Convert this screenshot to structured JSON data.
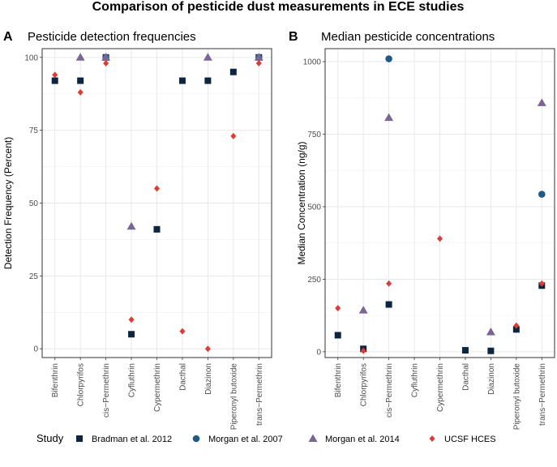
{
  "title": "Comparison of pesticide dust measurements in ECE studies",
  "legend": {
    "title": "Study",
    "entries": [
      {
        "name": "Bradman et al. 2012",
        "color": "#0d2540",
        "shape": "square"
      },
      {
        "name": "Morgan et al. 2007",
        "color": "#1f5a88",
        "shape": "circle"
      },
      {
        "name": "Morgan et al. 2014",
        "color": "#7a6694",
        "shape": "triangle"
      },
      {
        "name": "UCSF HCES",
        "color": "#de3b35",
        "shape": "diamond"
      }
    ]
  },
  "chart_data": [
    {
      "type": "scatter",
      "panel": "A",
      "title": "Pesticide detection frequencies",
      "xlabel": "",
      "ylabel": "Detection Frequency (Percent)",
      "ylim": [
        -3,
        103
      ],
      "yticks": [
        0,
        25,
        50,
        75,
        100
      ],
      "categories": [
        "Bifenthrin",
        "Chlorpyrifos",
        "cis−Permethrin",
        "Cyfluthrin",
        "Cypermethrin",
        "Dacthal",
        "Diazinon",
        "Piperonyl butoxide",
        "trans−Permethrin"
      ],
      "series": [
        {
          "name": "Bradman et al. 2012",
          "values": [
            92,
            92,
            100,
            5,
            41,
            92,
            92,
            95,
            100
          ]
        },
        {
          "name": "Morgan et al. 2007",
          "values": [
            null,
            null,
            100,
            null,
            null,
            null,
            null,
            null,
            100
          ]
        },
        {
          "name": "Morgan et al. 2014",
          "values": [
            null,
            100,
            100,
            42,
            null,
            null,
            100,
            null,
            100
          ]
        },
        {
          "name": "UCSF HCES",
          "values": [
            94,
            88,
            98,
            10,
            55,
            6,
            0,
            73,
            98
          ]
        }
      ]
    },
    {
      "type": "scatter",
      "panel": "B",
      "title": "Median pesticide concentrations",
      "xlabel": "",
      "ylabel": "Median Concentration (ng/g)",
      "ylim": [
        -20,
        1045
      ],
      "yticks": [
        0,
        250,
        500,
        750,
        1000
      ],
      "categories": [
        "Bifenthrin",
        "Chlorpyrifos",
        "cis−Permethrin",
        "Cyfluthrin",
        "Cypermethrin",
        "Dacthal",
        "Diazinon",
        "Piperonyl butoxide",
        "trans−Permethrin"
      ],
      "series": [
        {
          "name": "Bradman et al. 2012",
          "values": [
            57,
            10,
            163,
            null,
            null,
            5,
            3,
            77,
            228
          ]
        },
        {
          "name": "Morgan et al. 2007",
          "values": [
            null,
            null,
            1010,
            null,
            null,
            null,
            null,
            null,
            543
          ]
        },
        {
          "name": "Morgan et al. 2014",
          "values": [
            null,
            143,
            807,
            null,
            null,
            null,
            68,
            null,
            858
          ]
        },
        {
          "name": "UCSF HCES",
          "values": [
            150,
            3,
            235,
            null,
            390,
            null,
            null,
            90,
            235
          ]
        }
      ]
    }
  ]
}
